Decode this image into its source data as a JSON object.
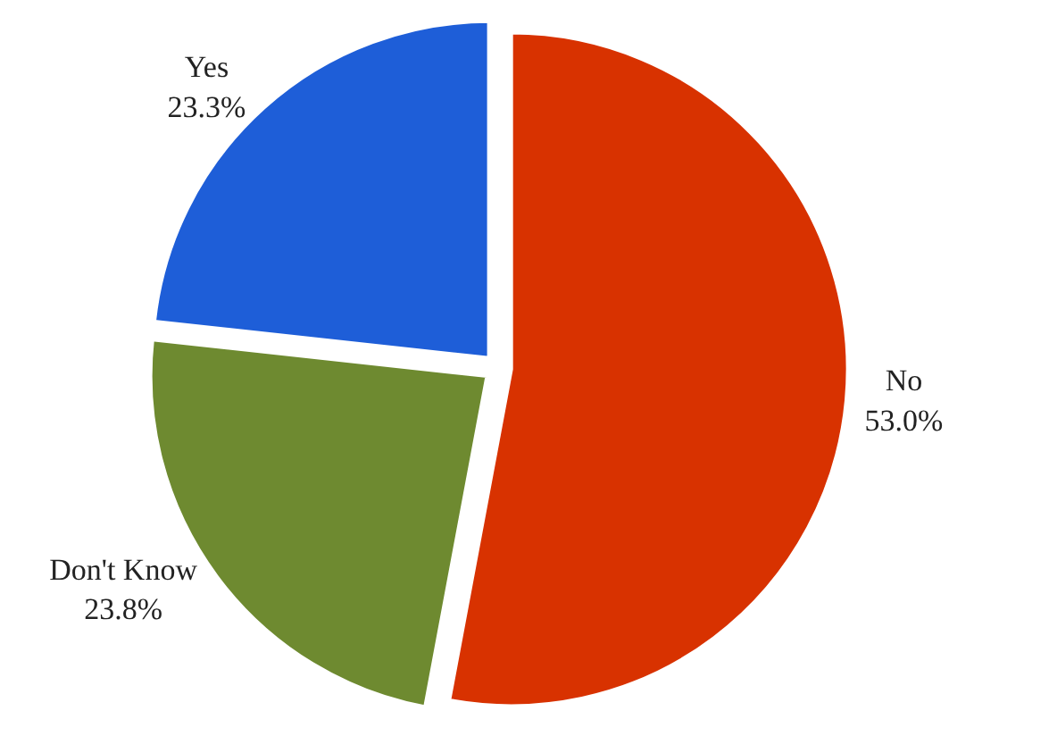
{
  "chart_data": {
    "type": "pie",
    "categories": [
      "No",
      "Don't Know",
      "Yes"
    ],
    "values": [
      53.0,
      23.8,
      23.3
    ],
    "colors": [
      "#d83200",
      "#6e8a30",
      "#1e5ed8"
    ],
    "value_labels": [
      "53.0%",
      "23.8%",
      "23.3%"
    ],
    "legend": false
  }
}
